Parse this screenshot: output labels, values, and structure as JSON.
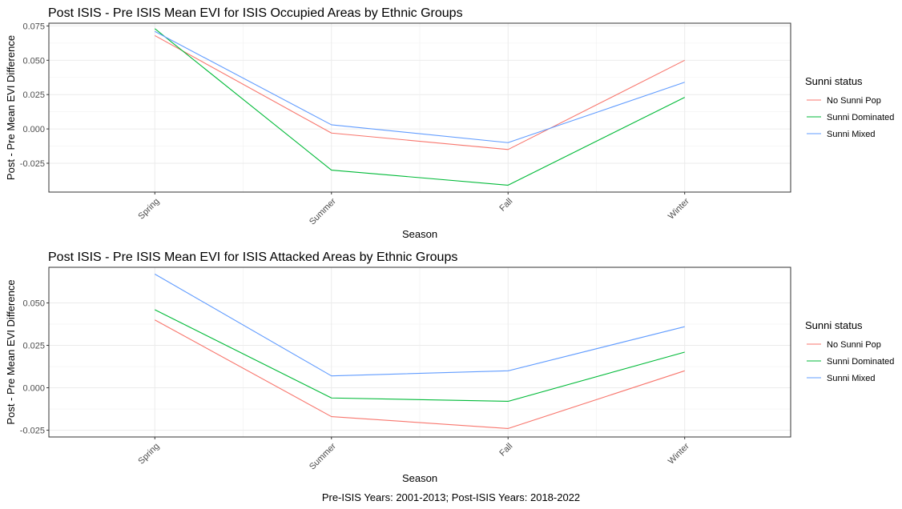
{
  "caption": "Pre-ISIS Years: 2001-2013; Post-ISIS Years: 2018-2022",
  "chart_data": [
    {
      "type": "line",
      "title": "Post ISIS - Pre ISIS Mean EVI for ISIS Occupied Areas by Ethnic Groups",
      "xlabel": "Season",
      "ylabel": "Post - Pre Mean EVI Difference",
      "categories": [
        "Spring",
        "Summer",
        "Fall",
        "Winter"
      ],
      "ylim": [
        -0.046,
        0.077
      ],
      "yticks": [
        -0.025,
        0.0,
        0.025,
        0.05,
        0.075
      ],
      "ytick_labels": [
        "-0.025",
        "0.000",
        "0.025",
        "0.050",
        "0.075"
      ],
      "grid": true,
      "legend": {
        "title": "Sunni status",
        "placement": "right"
      },
      "series": [
        {
          "name": "No Sunni Pop",
          "color": "#F8766D",
          "values": [
            0.068,
            -0.003,
            -0.015,
            0.05
          ]
        },
        {
          "name": "Sunni Dominated",
          "color": "#00BA38",
          "values": [
            0.073,
            -0.03,
            -0.041,
            0.023
          ]
        },
        {
          "name": "Sunni Mixed",
          "color": "#619CFF",
          "values": [
            0.071,
            0.003,
            -0.01,
            0.034
          ]
        }
      ]
    },
    {
      "type": "line",
      "title": "Post ISIS - Pre ISIS Mean EVI for ISIS Attacked Areas by Ethnic Groups",
      "xlabel": "Season",
      "ylabel": "Post - Pre Mean EVI Difference",
      "categories": [
        "Spring",
        "Summer",
        "Fall",
        "Winter"
      ],
      "ylim": [
        -0.029,
        0.071
      ],
      "yticks": [
        -0.025,
        0.0,
        0.025,
        0.05
      ],
      "ytick_labels": [
        "-0.025",
        "0.000",
        "0.025",
        "0.050"
      ],
      "grid": true,
      "legend": {
        "title": "Sunni status",
        "placement": "right"
      },
      "series": [
        {
          "name": "No Sunni Pop",
          "color": "#F8766D",
          "values": [
            0.04,
            -0.017,
            -0.024,
            0.01
          ]
        },
        {
          "name": "Sunni Dominated",
          "color": "#00BA38",
          "values": [
            0.046,
            -0.006,
            -0.008,
            0.021
          ]
        },
        {
          "name": "Sunni Mixed",
          "color": "#619CFF",
          "values": [
            0.067,
            0.007,
            0.01,
            0.036
          ]
        }
      ]
    }
  ]
}
